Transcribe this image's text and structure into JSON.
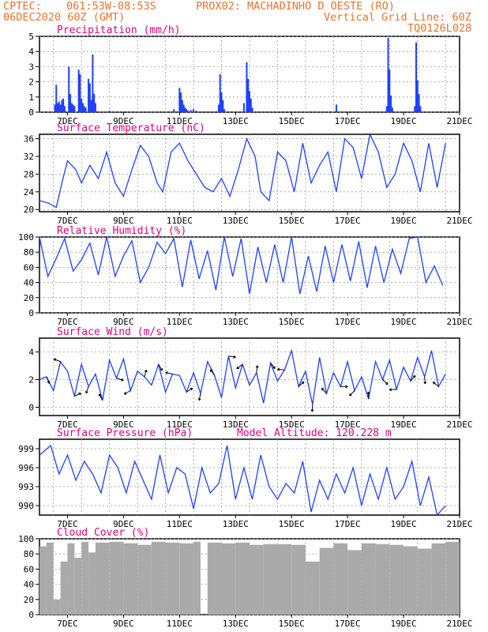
{
  "header": {
    "line1_left": "CPTEC:",
    "line1_coords": "061:53W-08:53S",
    "line1_station": "PROX02: MACHADINHO D OESTE (RO)",
    "line2_left": "06DEC2020 60Z (GMT)",
    "line2_right": "Vertical Grid Line: 60Z",
    "line3_right": "TQ0126L028"
  },
  "x_ticks": [
    "7DEC",
    "9DEC",
    "11DEC",
    "13DEC",
    "15DEC",
    "17DEC",
    "19DEC",
    "21DEC"
  ],
  "chart_data": [
    {
      "type": "bar",
      "title": "Precipitation (mm/h)",
      "ylim": [
        0,
        5
      ],
      "yticks": [
        "0",
        "1",
        "2",
        "3",
        "4",
        "5"
      ],
      "x_days_from_6dec_00z": [
        0.55,
        0.6,
        0.65,
        0.7,
        0.75,
        0.8,
        0.85,
        0.9,
        1.05,
        1.1,
        1.15,
        1.2,
        1.25,
        1.4,
        1.45,
        1.5,
        1.55,
        1.6,
        1.65,
        1.75,
        1.8,
        1.85,
        1.9,
        1.95,
        2.0,
        2.5,
        4.8,
        5.0,
        5.05,
        5.1,
        5.15,
        5.2,
        5.25,
        5.3,
        5.4,
        5.5,
        5.6,
        6.4,
        6.45,
        6.5,
        6.55,
        6.6,
        7.3,
        7.4,
        7.45,
        7.5,
        7.55,
        7.6,
        10.6,
        12.4,
        12.45,
        12.5,
        12.55,
        12.6,
        13.4,
        13.45,
        13.5,
        13.55,
        13.6
      ],
      "values": [
        0.5,
        1.8,
        0.6,
        0.7,
        0.5,
        0.8,
        0.9,
        0.4,
        3.0,
        1.2,
        0.6,
        0.5,
        0.4,
        2.8,
        2.5,
        0.9,
        0.6,
        0.4,
        0.3,
        2.2,
        1.9,
        0.8,
        3.8,
        1.2,
        0.6,
        0.1,
        0.2,
        1.6,
        1.3,
        0.8,
        0.5,
        0.3,
        0.2,
        0.1,
        0.15,
        0.2,
        0.1,
        0.5,
        2.5,
        1.3,
        0.8,
        0.2,
        0.6,
        3.3,
        2.2,
        1.4,
        0.9,
        0.3,
        0.5,
        0.4,
        4.9,
        2.8,
        1.1,
        0.3,
        0.4,
        4.6,
        2.1,
        1.2,
        0.4
      ]
    },
    {
      "type": "line",
      "title": "Surface Temperature (nC)",
      "ylim": [
        19.5,
        37
      ],
      "yticks": [
        "20",
        "24",
        "28",
        "32",
        "36"
      ],
      "x_days_from_6dec_00z": [
        0,
        0.3,
        0.6,
        0.8,
        1.0,
        1.3,
        1.5,
        1.8,
        2.1,
        2.4,
        2.7,
        3.0,
        3.3,
        3.6,
        3.9,
        4.2,
        4.4,
        4.7,
        5.0,
        5.3,
        5.6,
        5.9,
        6.2,
        6.5,
        6.8,
        7.1,
        7.4,
        7.7,
        7.9,
        8.2,
        8.5,
        8.8,
        9.1,
        9.4,
        9.7,
        10.0,
        10.3,
        10.6,
        10.9,
        11.2,
        11.5,
        11.8,
        12.1,
        12.4,
        12.7,
        13.0,
        13.3,
        13.6,
        13.9,
        14.2,
        14.5
      ],
      "values": [
        22,
        21.5,
        20.5,
        26,
        31,
        29,
        26,
        30,
        27,
        33,
        26,
        23,
        29,
        34.5,
        32,
        26,
        24,
        33,
        35,
        31,
        28,
        25,
        24,
        27,
        23,
        29,
        36,
        32,
        24,
        22,
        33,
        31,
        24,
        35,
        26,
        30,
        33,
        24,
        36,
        34,
        27,
        37,
        33,
        25,
        28,
        35,
        31,
        24,
        35,
        25,
        35
      ]
    },
    {
      "type": "line",
      "title": "Relative Humidity (%)",
      "ylim": [
        0,
        100
      ],
      "yticks": [
        "0",
        "20",
        "40",
        "60",
        "80",
        "100"
      ],
      "x_days_from_6dec_00z": [
        0,
        0.3,
        0.6,
        0.9,
        1.2,
        1.5,
        1.8,
        2.1,
        2.4,
        2.7,
        3.0,
        3.3,
        3.6,
        3.9,
        4.2,
        4.5,
        4.8,
        5.1,
        5.4,
        5.7,
        6.0,
        6.3,
        6.6,
        6.9,
        7.2,
        7.5,
        7.8,
        8.1,
        8.4,
        8.7,
        9.0,
        9.3,
        9.6,
        9.9,
        10.2,
        10.5,
        10.8,
        11.1,
        11.4,
        11.7,
        12.0,
        12.3,
        12.6,
        12.9,
        13.2,
        13.5,
        13.8,
        14.1,
        14.4
      ],
      "values": [
        100,
        48,
        72,
        98,
        55,
        70,
        92,
        50,
        100,
        48,
        75,
        95,
        40,
        60,
        93,
        78,
        98,
        34,
        96,
        45,
        82,
        30,
        100,
        48,
        98,
        25,
        87,
        40,
        90,
        40,
        100,
        25,
        75,
        28,
        88,
        40,
        90,
        42,
        94,
        33,
        88,
        40,
        84,
        52,
        98,
        100,
        40,
        62,
        36
      ]
    },
    {
      "type": "line",
      "title": "Surface Wind (m/s)",
      "ylim": [
        -0.6,
        5
      ],
      "yticks": [
        "0",
        "2",
        "4"
      ],
      "x_days_from_6dec_00z": [
        0,
        0.25,
        0.5,
        0.75,
        1.0,
        1.25,
        1.5,
        1.75,
        2.0,
        2.25,
        2.5,
        2.75,
        3.0,
        3.25,
        3.5,
        3.75,
        4.0,
        4.25,
        4.5,
        4.75,
        5.0,
        5.25,
        5.5,
        5.75,
        6.0,
        6.25,
        6.5,
        6.75,
        7.0,
        7.25,
        7.5,
        7.75,
        8.0,
        8.25,
        8.5,
        8.75,
        9.0,
        9.25,
        9.5,
        9.75,
        10.0,
        10.25,
        10.5,
        10.75,
        11.0,
        11.25,
        11.5,
        11.75,
        12.0,
        12.25,
        12.5,
        12.75,
        13.0,
        13.25,
        13.5,
        13.75,
        14.0,
        14.25,
        14.5
      ],
      "values": [
        2,
        2.2,
        1.2,
        3.3,
        2.6,
        0.8,
        3.1,
        1.5,
        2.4,
        0.5,
        3.4,
        2.1,
        3.5,
        1.2,
        2.6,
        2.2,
        1.6,
        3.1,
        1.1,
        2.4,
        2.3,
        1.1,
        2.5,
        1.0,
        3.3,
        2.3,
        0.7,
        3.7,
        1.4,
        3.1,
        1.6,
        2.5,
        0.3,
        3.2,
        1.9,
        2.7,
        4.1,
        1.5,
        2.6,
        0.2,
        3.6,
        1.0,
        2.5,
        1.5,
        3.3,
        1.2,
        2.2,
        0.6,
        3.3,
        2.0,
        3.4,
        1.3,
        2.9,
        1.9,
        3.6,
        2.2,
        4.1,
        1.5,
        2.4
      ]
    },
    {
      "type": "line",
      "title": "Surface Pressure (hPa)",
      "ylim": [
        988.5,
        1000.5
      ],
      "yticks": [
        "990",
        "993",
        "996",
        "999"
      ],
      "x_days_from_6dec_00z": [
        0,
        0.4,
        0.7,
        1.0,
        1.3,
        1.6,
        1.9,
        2.2,
        2.5,
        2.8,
        3.1,
        3.4,
        3.7,
        4.0,
        4.3,
        4.6,
        4.9,
        5.2,
        5.5,
        5.8,
        6.1,
        6.4,
        6.7,
        7.0,
        7.3,
        7.6,
        7.9,
        8.2,
        8.5,
        8.8,
        9.1,
        9.4,
        9.7,
        10.0,
        10.3,
        10.6,
        10.9,
        11.2,
        11.5,
        11.8,
        12.1,
        12.4,
        12.7,
        13.0,
        13.3,
        13.6,
        13.9,
        14.2,
        14.5
      ],
      "values": [
        998,
        999.5,
        995,
        998,
        994,
        997,
        995,
        992,
        998,
        996,
        992,
        997,
        994,
        991,
        998,
        992,
        996,
        995,
        989.5,
        996,
        992,
        993.5,
        999.5,
        991,
        996,
        991,
        998,
        993,
        991,
        993.5,
        992,
        997,
        989,
        994,
        991,
        995,
        992,
        996,
        990,
        995,
        991,
        996,
        991,
        993,
        997,
        990,
        994.5,
        988.5,
        990
      ]
    },
    {
      "type": "bar",
      "title": "Cloud Cover (%)",
      "ylim": [
        0,
        100
      ],
      "yticks": [
        "0",
        "20",
        "40",
        "60",
        "80",
        "100"
      ],
      "x_days_from_6dec_00z": [
        0,
        0.25,
        0.5,
        0.75,
        1.0,
        1.25,
        1.5,
        1.75,
        2.0,
        2.5,
        3.0,
        3.5,
        4.0,
        4.5,
        5.0,
        5.5,
        5.75,
        6.0,
        6.5,
        7.0,
        7.5,
        8.0,
        8.5,
        9.0,
        9.5,
        10.0,
        10.5,
        11.0,
        11.5,
        12.0,
        12.5,
        13.0,
        13.5,
        14.0,
        14.5
      ],
      "values": [
        90,
        95,
        20,
        70,
        94,
        75,
        96,
        82,
        95,
        96,
        94,
        92,
        96,
        95,
        94,
        96,
        0,
        95,
        94,
        95,
        92,
        93,
        93,
        92,
        70,
        88,
        94,
        85,
        94,
        93,
        92,
        90,
        87,
        94,
        96
      ]
    }
  ],
  "annotations": {
    "model_altitude": "Model Altitude: 120.228 m"
  },
  "colors": {
    "series": "#1f3fff",
    "cloud": "#aaaaaa",
    "title": "#e0007a",
    "header": "#e8742a",
    "grid": "#999999"
  }
}
